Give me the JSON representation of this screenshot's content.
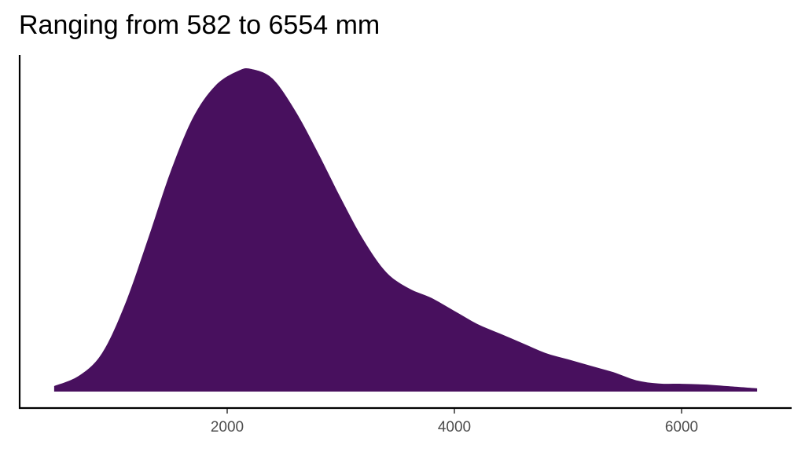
{
  "title": "Ranging from 582 to 6554 mm",
  "colors": {
    "fill": "#48105e",
    "axis": "#000000",
    "tick_text": "#4d4d4d",
    "background": "#ffffff"
  },
  "chart_data": {
    "type": "area",
    "subtype": "density",
    "title": "Ranging from 582 to 6554 mm",
    "xlabel": "",
    "ylabel": "",
    "x_ticks": [
      2000,
      4000,
      6000
    ],
    "x_tick_labels": [
      "2000",
      "4000",
      "6000"
    ],
    "xlim": [
      0,
      6950
    ],
    "y_ticks": [],
    "grid": false,
    "legend": null,
    "series": [
      {
        "name": "density",
        "x": [
          477,
          700,
          900,
          1100,
          1300,
          1500,
          1700,
          1900,
          2100,
          2215,
          2400,
          2600,
          2800,
          3000,
          3200,
          3400,
          3600,
          3800,
          4000,
          4200,
          4400,
          4600,
          4800,
          5000,
          5200,
          5400,
          5600,
          5800,
          6000,
          6200,
          6400,
          6665
        ],
        "y_relative": [
          0.017,
          0.05,
          0.12,
          0.27,
          0.47,
          0.68,
          0.85,
          0.95,
          0.995,
          1.0,
          0.97,
          0.87,
          0.74,
          0.6,
          0.47,
          0.37,
          0.32,
          0.29,
          0.25,
          0.21,
          0.18,
          0.15,
          0.12,
          0.1,
          0.08,
          0.06,
          0.035,
          0.025,
          0.024,
          0.022,
          0.017,
          0.01
        ]
      }
    ]
  },
  "axes": {
    "x_tick_labels": [
      "2000",
      "4000",
      "6000"
    ]
  }
}
